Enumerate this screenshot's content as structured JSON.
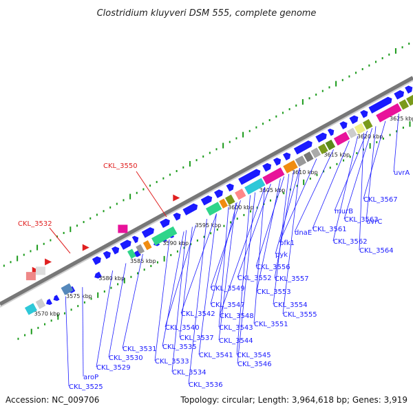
{
  "title": "Clostridium kluyveri DSM 555, complete genome",
  "accession": "Accession: NC_009706",
  "topology": "Topology: circular; Length: 3,964,618 bp; Genes: 3,919",
  "ticks": [
    "3570 kbp",
    "3575 kbp",
    "3580 kbp",
    "3585 kbp",
    "3590 kbp",
    "3595 kbp",
    "3600 kbp",
    "3605 kbp",
    "3610 kbp",
    "3615 kbp",
    "3620 kbp",
    "3625 kbp"
  ],
  "gene_labels": [
    "uvrA",
    "CKL_3567",
    "murB",
    "CKL_3563",
    "uvrC",
    "CKL_3561",
    "CKL_3562",
    "CKL_3564",
    "dnaE",
    "pfk1",
    "pyk",
    "CKL_3556",
    "CKL_3552",
    "CKL_3557",
    "CKL_3549",
    "CKL_3553",
    "CKL_3547",
    "CKL_3554",
    "CKL_3542",
    "CKL_3548",
    "CKL_3555",
    "CKL_3540",
    "CKL_3543",
    "CKL_3551",
    "CKL_3537",
    "CKL_3544",
    "CKL_3531",
    "CKL_3535",
    "CKL_3541",
    "CKL_3545",
    "CKL_3530",
    "CKL_3533",
    "CKL_3546",
    "CKL_3529",
    "CKL_3534",
    "aroP",
    "CKL_3536",
    "CKL_3525"
  ],
  "red_labels": [
    "CKL_3550",
    "CKL_3532"
  ],
  "colors": {
    "forward": "#1a1aff",
    "reverse": "#1a1aff",
    "rna": "#e02020",
    "pink": "#e8139a",
    "cyan": "#2ec8d8",
    "green": "#2fd58a",
    "olive": "#7a9a1a",
    "orange": "#f08c10",
    "gray": "#999999",
    "backbone": "#888888"
  }
}
